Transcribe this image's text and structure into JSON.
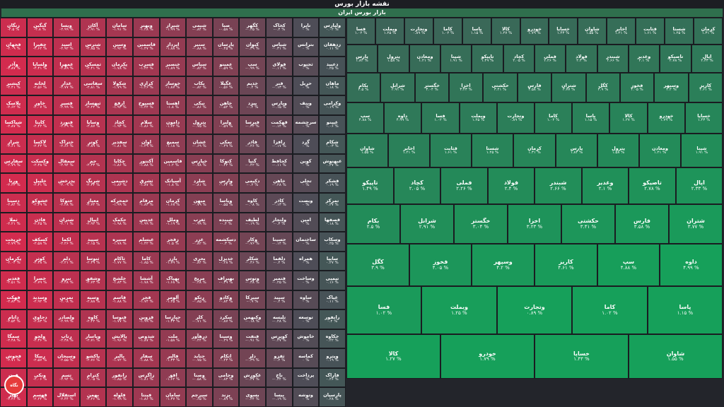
{
  "page": {
    "title": "نقشه بازار بورس",
    "group": "بازار بورس ایران"
  },
  "brand": {
    "badge": "نگاه"
  },
  "colors": {
    "neg": "#d62a4e",
    "neutral": "#4a4e57",
    "pos": "#16a05a"
  },
  "columns": [
    {
      "tone": 0.95,
      "items": [
        [
          "زنگان",
          "-۲.۵ %"
        ],
        [
          "فجهان",
          "-۲.۰۹ %"
        ],
        [
          "وآذر",
          "-۲.۸۷ %"
        ],
        [
          "کپشیر",
          "-۲.۴۱ %"
        ],
        [
          "پلاسک",
          "-۲.۶۲ %"
        ],
        [
          "شپاکسا",
          "-۲.۸۷ %"
        ],
        [
          "شراز",
          "-۲.۶۱ %"
        ],
        [
          "سفارس",
          "-۲.۷۹ %"
        ],
        [
          "ورنا",
          "-۲.۲۳ %"
        ],
        [
          "دسینا",
          "-۲.۸۴ %"
        ],
        [
          "ثملا",
          "-۲.۲۱ %"
        ],
        [
          "خریخت",
          "-۲.۷۹ %"
        ],
        [
          "پکرمان",
          "-۲.۰۴ %"
        ],
        [
          "فغدیر",
          "-۲.۵۱ %"
        ],
        [
          "فهکت",
          "-۲.۸۳ %"
        ],
        [
          "داتام",
          "-۲.۵۴ %"
        ],
        [
          "سمگا",
          "-۲.۴۸ %"
        ],
        [
          "فجوش",
          "-۲.۷۱ %"
        ],
        [
          "قرن",
          "-۲.۵۱ %"
        ],
        [
          "بهپر",
          "-۲.۲۶ %"
        ]
      ]
    },
    {
      "tone": 0.9,
      "items": [
        [
          "گنگین",
          "-۲.۸ %"
        ],
        [
          "چفیرا",
          "-۲.۶۲ %"
        ],
        [
          "ولساپا",
          "-۲.۴۱ %"
        ],
        [
          "لخانه",
          "-۲.۵۶ %"
        ],
        [
          "خاور",
          "-۲.۰۷ %"
        ],
        [
          "کایتا",
          "-۲.۴۲ %"
        ],
        [
          "لاکسا",
          "-۲.۴۲ %"
        ],
        [
          "وکسکت",
          "-۲.۳۸ %"
        ],
        [
          "خلیبل",
          "-۲.۳۱ %"
        ],
        [
          "عشوکو",
          "-۲.۲۹ %"
        ],
        [
          "فاذن",
          "-۲.۴۵ %"
        ],
        [
          "کسکف",
          "-۲.۵۸ %"
        ],
        [
          "کوثر",
          "-۲.۳۸ %"
        ],
        [
          "خصرا",
          "-۲.۷۹ %"
        ],
        [
          "وسدید",
          "-۲.۹۲ %"
        ],
        [
          "دحاوی",
          "-۲.۸۳ %"
        ],
        [
          "ولجو",
          "-۲.۳۶ %"
        ],
        [
          "ربیکا",
          "-۲.۵۷ %"
        ],
        [
          "ونکی",
          "-۲.۰۶ %"
        ],
        [
          "قهسم",
          "-۲.۲۴ %"
        ]
      ]
    },
    {
      "tone": 0.82,
      "items": [
        [
          "ویسا",
          "-۲.۹۹ %"
        ],
        [
          "اسید",
          "-۲.۹۲ %"
        ],
        [
          "غمهرا",
          "-۲.۸۹ %"
        ],
        [
          "غدار",
          "-۲.۷۷ %"
        ],
        [
          "فسیر",
          "-۲.۹۹ %"
        ],
        [
          "فنورد",
          "-۲.۳۹ %"
        ],
        [
          "ختراک",
          "-۲.۶۶ %"
        ],
        [
          "سمقال",
          "-۲.۹۴ %"
        ],
        [
          "پدرخش",
          "-۲.۰۹ %"
        ],
        [
          "حتوکا",
          "-۲.۲۸ %"
        ],
        [
          "شتران",
          "-۲.۰۱ %"
        ],
        [
          "لکما",
          "-۲.۲۶ %"
        ],
        [
          "دلم",
          "-۲.۲۱ %"
        ],
        [
          "نیرو",
          "-۲.۲۸ %"
        ],
        [
          "نمرین",
          "-۲.۰۸ %"
        ],
        [
          "ولصادر",
          "-۲.۹۹ %"
        ],
        [
          "رتاپ",
          "-۲.۳۸ %"
        ],
        [
          "وسبحان",
          "-۲.۵۵ %"
        ],
        [
          "تسم",
          "-۲.۹۴ %"
        ],
        [
          "استقلال",
          "-۲.۴۴ %"
        ]
      ]
    },
    {
      "tone": 0.75,
      "items": [
        [
          "آکان",
          "-۲.۹۱ %"
        ],
        [
          "شترس",
          "-۲.۸۵ %"
        ],
        [
          "ثمسکن",
          "-۲.۴۱ %"
        ],
        [
          "سفاسی",
          "-۲.۸۱ %"
        ],
        [
          "ثبهساز",
          "-۲.۲۴ %"
        ],
        [
          "وساپا",
          "-۲.۸۷ %"
        ],
        [
          "کوتر",
          "-۲.۸۹ %"
        ],
        [
          "جم",
          "-۲.۳۳ %"
        ],
        [
          "شرنگ",
          "-۲.۳۴ %"
        ],
        [
          "معیار",
          "-۲.۷۴ %"
        ],
        [
          "ایپال",
          "-۲.۹۲ %"
        ],
        [
          "سپید",
          "-۲.۱۵ %"
        ],
        [
          "ثنوسا",
          "-۲.۴۹ %"
        ],
        [
          "وشفق",
          "-۲.۷۳ %"
        ],
        [
          "وسپه",
          "-۲.۸۸ %"
        ],
        [
          "کاوه",
          "-۲.۲۲ %"
        ],
        [
          "وپاسار",
          "-۲.۷۱ %"
        ],
        [
          "پاکشو",
          "-۲.۷۶ %"
        ],
        [
          "کترام",
          "-۲.۰۵ %"
        ],
        [
          "بهمن",
          "-۲.۲۶ %"
        ]
      ]
    },
    {
      "tone": 0.68,
      "items": [
        [
          "سامان",
          "-۱.۹۱ %"
        ],
        [
          "وسین",
          "-۱.۹۲ %"
        ],
        [
          "پکرمان",
          "-۱.۷۸ %"
        ],
        [
          "شکولا",
          "-۱.۷۹ %"
        ],
        [
          "ارفع",
          "-۱.۹۳ %"
        ],
        [
          "کچاد",
          "-۱.۹۳ %"
        ],
        [
          "سفدیر",
          "-۱.۸۱ %"
        ],
        [
          "چکاپا",
          "-۱.۸۶ %"
        ],
        [
          "دشیمی",
          "-۱.۸۳ %"
        ],
        [
          "خمحرکه",
          "-۱.۹۹ %"
        ],
        [
          "حکمک",
          "-۱.۹۸ %"
        ],
        [
          "سنیره",
          "-۱.۷۸ %"
        ],
        [
          "ثاکام",
          "-۱.۷۷ %"
        ],
        [
          "خلشخ",
          "-۱.۸۳ %"
        ],
        [
          "قاسم",
          "-۱.۸۸ %"
        ],
        [
          "فنوسا",
          "-۱.۷۷ %"
        ],
        [
          "پالایش",
          "-۱.۹۶ %"
        ],
        [
          "بالبر",
          "-۱.۷۲ %"
        ],
        [
          "رانفور",
          "-۱.۸۵ %"
        ],
        [
          "فلوله",
          "-۱.۹۹ %"
        ]
      ]
    },
    {
      "tone": 0.6,
      "items": [
        [
          "ویهنر",
          "-۱.۲۸ %"
        ],
        [
          "قاسمین",
          "-۱.۴۷ %"
        ],
        [
          "فسرب",
          "-۱.۴۴ %"
        ],
        [
          "کرازی",
          "-۱.۲۶ %"
        ],
        [
          "فسپوخ",
          "-۱.۴۴ %"
        ],
        [
          "سلام",
          "-۱.۸۶ %"
        ],
        [
          "اوان",
          "-۱.۴۹ %"
        ],
        [
          "آکنتور",
          "-۱.۸۸ %"
        ],
        [
          "ثشرق",
          "-۱.۸۷ %"
        ],
        [
          "مرقام",
          "-۱.۸۳ %"
        ],
        [
          "غدیس",
          "-۱.۹۹ %"
        ],
        [
          "غبسلم",
          "-۱.۴۲ %"
        ],
        [
          "کاما",
          "-۱.۸۵ %"
        ],
        [
          "آششا",
          "-۱.۷۸ %"
        ],
        [
          "فجر",
          "-۱.۷۴ %"
        ],
        [
          "قزوین",
          "-۱.۹۹ %"
        ],
        [
          "شدوص",
          "-۱.۸۷ %"
        ],
        [
          "سفار",
          "-۱.۸۸ %"
        ],
        [
          "زاگرس",
          "-۱.۸۱ %"
        ],
        [
          "فپنتا",
          "-۱.۸۶ %"
        ]
      ]
    },
    {
      "tone": 0.52,
      "items": [
        [
          "شیراز",
          "-۱.۹۹ %"
        ],
        [
          "اپرداز",
          "-۱.۸۸ %"
        ],
        [
          "خنصیر",
          "-۱.۸۹ %"
        ],
        [
          "خوساز",
          "-۱.۸۷ %"
        ],
        [
          "اهستا",
          "-۱.۸ %"
        ],
        [
          "دامون",
          "-۱.۷۴ %"
        ],
        [
          "سمیع",
          "-۱.۱۸ %"
        ],
        [
          "فاسمین",
          "-۱.۲ %"
        ],
        [
          "آسیاتک",
          "-۱.۸ %"
        ],
        [
          "کرمان",
          "-۱.۶۸ %"
        ],
        [
          "وملل",
          "-۱.۱۹ %"
        ],
        [
          "زفجر",
          "-۱.۵ %"
        ],
        [
          "بارز",
          "-۱.۷۹ %"
        ],
        [
          "بهپاک",
          "-۱.۶۸ %"
        ],
        [
          "آلومر",
          "-۱.۴۵ %"
        ],
        [
          "حپارسا",
          "-۱.۳۳ %"
        ],
        [
          "ملت",
          "-۱.۵۸ %"
        ],
        [
          "فالبر",
          "-۱.۳۳ %"
        ],
        [
          "افق",
          "-۱.۶۲ %"
        ],
        [
          "سامان",
          "-۱.۳۷ %"
        ]
      ]
    },
    {
      "tone": 0.44,
      "items": [
        [
          "شیمی",
          "-۰.۸۴ %"
        ],
        [
          "سنیر",
          "-۰.۸۸ %"
        ],
        [
          "سپاس",
          "-۰.۸۲ %"
        ],
        [
          "بکاب",
          "-۰.۸۲ %"
        ],
        [
          "نیکی",
          "-۰.۸۶ %"
        ],
        [
          "پترول",
          "-۰.۷۵ %"
        ],
        [
          "غشان",
          "-۰.۶۹ %"
        ],
        [
          "خپارس",
          "-۰.۷۸ %"
        ],
        [
          "شلرد",
          "-۰.۸۱ %"
        ],
        [
          "میهن",
          "-۰.۷۹ %"
        ],
        [
          "ثغرب",
          "-۰.۹۹ %"
        ],
        [
          "غزر",
          "-۰.۸۲ %"
        ],
        [
          "بحری",
          "-۰.۸۴ %"
        ],
        [
          "مریخ",
          "-۰.۴۸ %"
        ],
        [
          "رتکو",
          "-۰.۸۵ %"
        ],
        [
          "کلر",
          "-۰.۷۱ %"
        ],
        [
          "درهآور",
          "-۰.۴۴ %"
        ],
        [
          "حتاید",
          "-۰.۷۵ %"
        ],
        [
          "وصنا",
          "-۰.۵۸ %"
        ],
        [
          "سپرچم",
          "-۰.۶۵ %"
        ]
      ]
    },
    {
      "tone": 0.36,
      "items": [
        [
          "صبا",
          "-۰.۵۸ %"
        ],
        [
          "پارسان",
          "-۰.۴۵ %"
        ],
        [
          "عمینو",
          "-۰.۵۹ %"
        ],
        [
          "غگیلا",
          "-۰.۵۶ %"
        ],
        [
          "خاهن",
          "-۰.۵۲ %"
        ],
        [
          "ولبرا",
          "-۰.۵۹ %"
        ],
        [
          "نمکی",
          "-۰.۴۹ %"
        ],
        [
          "کتوکا",
          "-۰.۴۲ %"
        ],
        [
          "وارس",
          "-۰.۲۴ %"
        ],
        [
          "وپاسا",
          "-۰.۵۵ %"
        ],
        [
          "شبنده",
          "-۰.۴ %"
        ],
        [
          "دسکشمه",
          "-۰.۳ %"
        ],
        [
          "خدیزل",
          "-۰.۲۸ %"
        ],
        [
          "بهیراف",
          "-۰.۳۹ %"
        ],
        [
          "وکادو",
          "-۰.۸۴ %"
        ],
        [
          "سکرد",
          "-۰.۸۷ %"
        ],
        [
          "وسینا",
          "-۰.۲۹ %"
        ],
        [
          "اتکام",
          "-۰.۴۳ %"
        ],
        [
          "وجامی",
          "-۰.۸۳ %"
        ],
        [
          "بزند",
          "-۰.۸۹ %"
        ]
      ]
    },
    {
      "tone": 0.26,
      "items": [
        [
          "کگهر",
          "-۰.۴۵ %"
        ],
        [
          "کیوان",
          "-۰.۳۹ %"
        ],
        [
          "سپ",
          "-۰.۹۹ %"
        ],
        [
          "خدیم",
          "-۰.۴ %"
        ],
        [
          "پیزد",
          "-۰.۴ %"
        ],
        [
          "فپرسا",
          "-۰.۳۲ %"
        ],
        [
          "فاذر",
          "-۰.۲۶ %"
        ],
        [
          "گنیا",
          "-۰.۴۲ %"
        ],
        [
          "دکیمی",
          "-۰.۲ %"
        ],
        [
          "کاوه",
          "-۰.۰۸ %"
        ],
        [
          "لطیف",
          "-۰.۱۹ %"
        ],
        [
          "وکار",
          "-۰.۷۶ %"
        ],
        [
          "شکلر",
          "-۰.۴۶ %"
        ],
        [
          "وتوس",
          "-۰.۴۸ %"
        ],
        [
          "سپرکا",
          "-۰.۹ %"
        ],
        [
          "وکبهمن",
          "-۰.۱۸ %"
        ],
        [
          "فنفت",
          "-۰.۹۱ %"
        ],
        [
          "دلر",
          "-۰.۳۹ %"
        ],
        [
          "غکورش",
          "-۰.۳۷ %"
        ],
        [
          "بسوی",
          "-۰.۲۴ %"
        ]
      ]
    },
    {
      "tone": 0.16,
      "items": [
        [
          "کخاک",
          "-۰.۲ %"
        ],
        [
          "شپاس",
          "-۰.۳۱ %"
        ],
        [
          "فولای",
          "-۰.۱۱ %"
        ],
        [
          "فنر",
          "-۰.۱۳ %"
        ],
        [
          "وپارس",
          "-۰.۱۵ %"
        ],
        [
          "قهکمت",
          "-۰.۱۴ %"
        ],
        [
          "رافزا",
          "-۰.۱۷ %"
        ],
        [
          "کحافظ",
          "-۰.۱۱ %"
        ],
        [
          "خاهن",
          "-۰.۲۸ %"
        ],
        [
          "کاذر",
          "-۰.۱۳ %"
        ],
        [
          "ولتجار",
          "-۰.۳ %"
        ],
        [
          "حسینا",
          "-۰.۱۴ %"
        ],
        [
          "دلقما",
          "-۰.۲ %"
        ],
        [
          "فتمیر",
          "-۰.۲۵ %"
        ],
        [
          "سپید",
          "-۰.۲ %"
        ],
        [
          "تلیسه",
          "-۰.۲۸ %"
        ],
        [
          "کوپرس",
          "-۰.۲۷ %"
        ],
        [
          "ثقزو",
          "-۰.۲ %"
        ],
        [
          "ناخ",
          "-۰.۲۴ %"
        ],
        [
          "بیسا",
          "-۰.۱۹ %"
        ]
      ]
    },
    {
      "tone": 0.06,
      "items": [
        [
          "تاپرا",
          "۰ %"
        ],
        [
          "بترانس",
          "۰ %"
        ],
        [
          "ثجنوب",
          "۰ %"
        ],
        [
          "حریل",
          "۰ %"
        ],
        [
          "وبنف",
          "۰ %"
        ],
        [
          "سرچشمه",
          "۰ %"
        ],
        [
          "گرد",
          "۰ %"
        ],
        [
          "کوین",
          "۰ %"
        ],
        [
          "تجلی",
          "۰ %"
        ],
        [
          "وبصت",
          "۰ %"
        ],
        [
          "امین",
          "۰ %"
        ],
        [
          "ساختمان",
          "۰ %"
        ],
        [
          "همراه",
          "۰ %"
        ],
        [
          "وساخت",
          "۰ %"
        ],
        [
          "ساوه",
          "۰ %"
        ],
        [
          "توسعه",
          "۰ %"
        ],
        [
          "خاموش",
          "۰ %"
        ],
        [
          "کماسه",
          "۰ %"
        ],
        [
          "پرداخت",
          "۰ %"
        ],
        [
          "وتوشه",
          "۰ %"
        ]
      ]
    },
    {
      "tone": -0.08,
      "items": [
        [
          "ولپارس",
          "۰.۰۲ %"
        ],
        [
          "زدهقان",
          "۰.۱۱ %"
        ],
        [
          "دعبید",
          "۰.۲۵ %"
        ],
        [
          "ماهان",
          "۰.۱۸ %"
        ],
        [
          "وکرامی",
          "۰.۱۹ %"
        ],
        [
          "غپینو",
          "۰.۰۶ %"
        ],
        [
          "شکام",
          "۰.۰۳ %"
        ],
        [
          "غبهنوش",
          "۰.۲۷ %"
        ],
        [
          "قشکر",
          "۰.۱۹ %"
        ],
        [
          "تمرکز",
          "۰.۲۷ %"
        ],
        [
          "قصفها",
          "۰.۱۸ %"
        ],
        [
          "وسکاب",
          "۰.۲۵ %"
        ],
        [
          "سایپا",
          "۰.۲۷ %"
        ],
        [
          "تپمپی",
          "۰.۱۶ %"
        ],
        [
          "غپاک",
          "۰.۱۱ %"
        ],
        [
          "رانفور",
          "۰.۲ %"
        ],
        [
          "خکاوه",
          "۰.۲۲ %"
        ],
        [
          "وپترو",
          "۰.۱۹ %"
        ],
        [
          "فاراک",
          "۰.۲۶ %"
        ],
        [
          "پارسیان",
          "۰.۲۸ %"
        ]
      ]
    }
  ],
  "green_tiles": [
    [
      "فسا",
      "۱.۰۲ %"
    ],
    [
      "وبملت",
      "۱.۲۵ %"
    ],
    [
      "وتجارت",
      "۰.۸۹ %"
    ],
    [
      "کاما",
      "۱.۰۲ %"
    ],
    [
      "پاسا",
      "۱.۱۵ %"
    ],
    [
      "کالا",
      "۱.۲۷ %"
    ],
    [
      "خودرو",
      "۱.۷۹ %"
    ],
    [
      "خساپا",
      "۱.۴۳ %"
    ],
    [
      "شاوان",
      "۱.۵۵ %"
    ],
    [
      "اخابر",
      "۱.۲۱ %"
    ],
    [
      "قثابت",
      "۱.۶۱ %"
    ],
    [
      "شستا",
      "۱.۲۵ %"
    ],
    [
      "کرمان",
      "۱.۳۱ %"
    ],
    [
      "پارس",
      "۱.۸۲ %"
    ],
    [
      "پترول",
      "۱.۵۸ %"
    ],
    [
      "ومعادن",
      "۱.۲۱ %"
    ],
    [
      "شپنا",
      "۱.۹۱ %"
    ],
    [
      "تاپیکو",
      "۱.۴۹ %"
    ],
    [
      "کچاد",
      "۲.۰۵ %"
    ],
    [
      "فملی",
      "۲.۲۶ %"
    ],
    [
      "فولاد",
      "۲.۴ %"
    ],
    [
      "شبندر",
      "۲.۶۶ %"
    ],
    [
      "وغدیر",
      "۲.۱ %"
    ],
    [
      "تاصیکو",
      "۲.۷۸ %"
    ],
    [
      "اپال",
      "۲.۳۳ %"
    ],
    [
      "بکام",
      "۲.۵ %"
    ],
    [
      "شرانل",
      "۲.۹۱ %"
    ],
    [
      "خگستر",
      "۳.۰۴ %"
    ],
    [
      "اخزا",
      "۳.۲۳ %"
    ],
    [
      "حکشتی",
      "۳.۴۱ %"
    ],
    [
      "فارس",
      "۳.۵۸ %"
    ],
    [
      "شتران",
      "۳.۷۷ %"
    ],
    [
      "کگل",
      "۳.۹ %"
    ],
    [
      "فخوز",
      "۴.۰۵ %"
    ],
    [
      "وسپهر",
      "۴.۲ %"
    ],
    [
      "کاریز",
      "۴.۶۱ %"
    ],
    [
      "سپ",
      "۴.۸۸ %"
    ],
    [
      "داوه",
      "۴.۹۹ %"
    ]
  ]
}
